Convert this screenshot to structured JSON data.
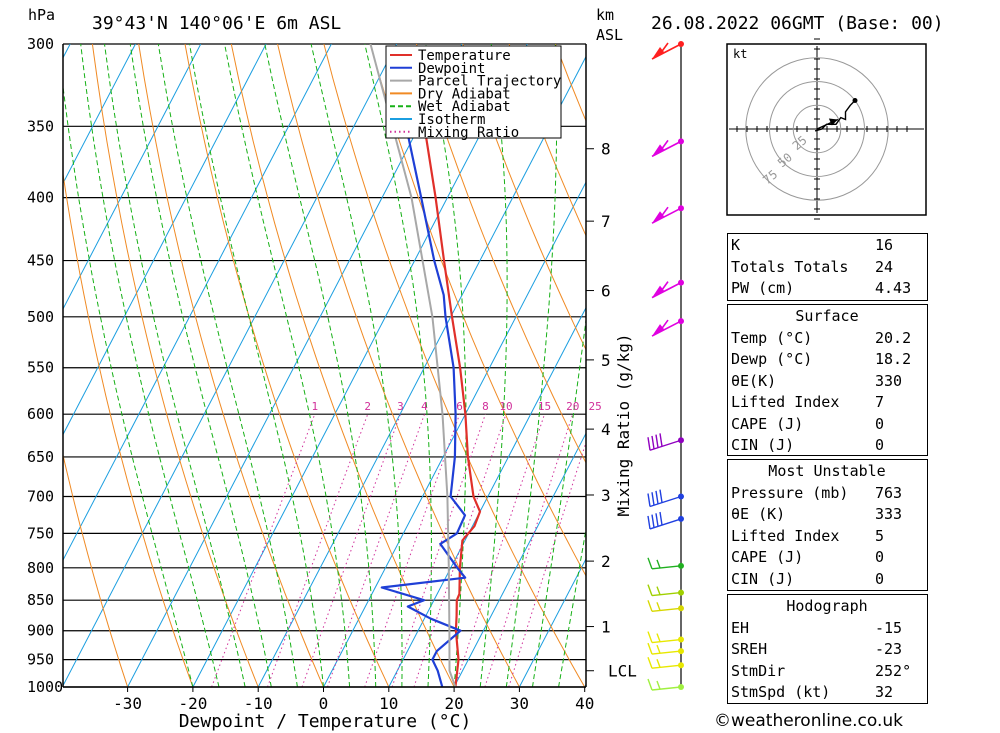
{
  "header": {
    "hpa_unit": "hPa",
    "location": "39°43'N  140°06'E  6m  ASL",
    "km_unit": "km",
    "asl_label": "ASL",
    "datetime": "26.08.2022  06GMT  (Base: 00)"
  },
  "chart_data": {
    "type": "line",
    "title": "Skew-T log-P diagram",
    "xlabel": "Dewpoint / Temperature (°C)",
    "ylabel": "hPa",
    "secondary_ylabel": "Mixing Ratio (g/kg)",
    "xlim": [
      -40,
      40
    ],
    "ylim": [
      1000,
      300
    ],
    "pressure_ticks": [
      300,
      350,
      400,
      450,
      500,
      550,
      600,
      650,
      700,
      750,
      800,
      850,
      900,
      950,
      1000
    ],
    "temperature_ticks": [
      -30,
      -20,
      -10,
      0,
      10,
      20,
      30,
      40
    ],
    "height_km_labels": [
      {
        "label": "8",
        "p": 365
      },
      {
        "label": "7",
        "p": 418
      },
      {
        "label": "6",
        "p": 476
      },
      {
        "label": "5",
        "p": 542
      },
      {
        "label": "4",
        "p": 617
      },
      {
        "label": "3",
        "p": 698
      },
      {
        "label": "2",
        "p": 790
      },
      {
        "label": "1",
        "p": 893
      },
      {
        "label": "LCL",
        "p": 970
      }
    ],
    "mixing_ratio_labels": [
      "1",
      "2",
      "3",
      "4",
      "6",
      "8",
      "10",
      "15",
      "20",
      "25"
    ],
    "mixing_ratio_values": [
      1,
      2,
      3,
      4,
      6,
      8,
      10,
      15,
      20,
      25
    ],
    "legend": [
      "Temperature",
      "Dewpoint",
      "Parcel Trajectory",
      "Dry Adiabat",
      "Wet Adiabat",
      "Isotherm",
      "Mixing Ratio"
    ],
    "series": [
      {
        "name": "Temperature",
        "color": "#e0302a",
        "points": [
          [
            1000,
            20.2
          ],
          [
            950,
            18.5
          ],
          [
            900,
            15.8
          ],
          [
            875,
            14.7
          ],
          [
            850,
            13.5
          ],
          [
            840,
            13.4
          ],
          [
            800,
            11.4
          ],
          [
            760,
            9.6
          ],
          [
            740,
            10.3
          ],
          [
            720,
            10.0
          ],
          [
            700,
            7.8
          ],
          [
            650,
            3.8
          ],
          [
            600,
            0.0
          ],
          [
            550,
            -4.5
          ],
          [
            500,
            -9.8
          ],
          [
            450,
            -15.5
          ],
          [
            400,
            -21.8
          ],
          [
            350,
            -29.2
          ],
          [
            330,
            -32.5
          ]
        ]
      },
      {
        "name": "Dewpoint",
        "color": "#1f3fd6",
        "points": [
          [
            1000,
            18.2
          ],
          [
            970,
            16.2
          ],
          [
            950,
            14.5
          ],
          [
            935,
            14.5
          ],
          [
            900,
            16.5
          ],
          [
            880,
            11.0
          ],
          [
            860,
            6.5
          ],
          [
            850,
            8.5
          ],
          [
            830,
            1.0
          ],
          [
            815,
            13.0
          ],
          [
            800,
            11.0
          ],
          [
            765,
            6.5
          ],
          [
            750,
            8.2
          ],
          [
            725,
            8.0
          ],
          [
            700,
            4.3
          ],
          [
            650,
            1.8
          ],
          [
            600,
            -1.5
          ],
          [
            550,
            -5.5
          ],
          [
            500,
            -10.8
          ],
          [
            480,
            -12.8
          ],
          [
            450,
            -17.0
          ],
          [
            400,
            -24.0
          ],
          [
            350,
            -32.0
          ],
          [
            330,
            -35.0
          ]
        ]
      },
      {
        "name": "Parcel Trajectory",
        "color": "#a8a8a8",
        "points": [
          [
            1000,
            20.2
          ],
          [
            970,
            18.0
          ],
          [
            900,
            14.8
          ],
          [
            800,
            9.7
          ],
          [
            700,
            3.8
          ],
          [
            600,
            -3.5
          ],
          [
            500,
            -12.8
          ],
          [
            400,
            -25.5
          ],
          [
            300,
            -44.0
          ]
        ]
      }
    ],
    "wind_barbs": [
      {
        "p": 300,
        "color": "#ff2020",
        "barbs": "flags"
      },
      {
        "p": 360,
        "color": "#e000e0",
        "barbs": "flags"
      },
      {
        "p": 408,
        "color": "#e000e0",
        "barbs": "flags"
      },
      {
        "p": 469,
        "color": "#e000e0",
        "barbs": "flags"
      },
      {
        "p": 504,
        "color": "#e000e0",
        "barbs": "flags"
      },
      {
        "p": 630,
        "color": "#9000c0",
        "barbs": "long"
      },
      {
        "p": 700,
        "color": "#2040e0",
        "barbs": "long"
      },
      {
        "p": 730,
        "color": "#2040e0",
        "barbs": "long"
      },
      {
        "p": 797,
        "color": "#20b020",
        "barbs": "short"
      },
      {
        "p": 838,
        "color": "#a0d000",
        "barbs": "short"
      },
      {
        "p": 863,
        "color": "#d8d800",
        "barbs": "short"
      },
      {
        "p": 915,
        "color": "#e8e800",
        "barbs": "short"
      },
      {
        "p": 935,
        "color": "#e8e800",
        "barbs": "short"
      },
      {
        "p": 960,
        "color": "#e8e800",
        "barbs": "short"
      },
      {
        "p": 1000,
        "color": "#a0f040",
        "barbs": "short"
      }
    ],
    "hodograph": {
      "unit": "kt",
      "ring_labels": [
        "25",
        "50",
        "75"
      ],
      "trace_kt": [
        [
          -2,
          -2
        ],
        [
          5,
          0
        ],
        [
          10,
          5
        ],
        [
          20,
          5
        ],
        [
          25,
          12
        ],
        [
          30,
          10
        ],
        [
          30,
          18
        ],
        [
          35,
          25
        ],
        [
          40,
          30
        ]
      ],
      "storm_motion_kt": [
        22,
        10
      ]
    }
  },
  "indices": {
    "general": [
      {
        "label": "K",
        "value": "16"
      },
      {
        "label": "Totals Totals",
        "value": "24"
      },
      {
        "label": "PW (cm)",
        "value": "4.43"
      }
    ],
    "surface_title": "Surface",
    "surface": [
      {
        "label": "Temp (°C)",
        "value": "20.2"
      },
      {
        "label": "Dewp (°C)",
        "value": "18.2"
      },
      {
        "label": "θE(K)",
        "value": "330"
      },
      {
        "label": "Lifted Index",
        "value": "7"
      },
      {
        "label": "CAPE (J)",
        "value": "0"
      },
      {
        "label": "CIN (J)",
        "value": "0"
      }
    ],
    "unstable_title": "Most Unstable",
    "unstable": [
      {
        "label": "Pressure (mb)",
        "value": "763"
      },
      {
        "label": "θE (K)",
        "value": "333"
      },
      {
        "label": "Lifted Index",
        "value": "5"
      },
      {
        "label": "CAPE (J)",
        "value": "0"
      },
      {
        "label": "CIN (J)",
        "value": "0"
      }
    ],
    "hodograph_title": "Hodograph",
    "hodo": [
      {
        "label": "EH",
        "value": "-15"
      },
      {
        "label": "SREH",
        "value": "-23"
      },
      {
        "label": "StmDir",
        "value": "252°"
      },
      {
        "label": "StmSpd (kt)",
        "value": "32"
      }
    ]
  },
  "footer": {
    "copyright": "©weatheronline.co.uk"
  }
}
